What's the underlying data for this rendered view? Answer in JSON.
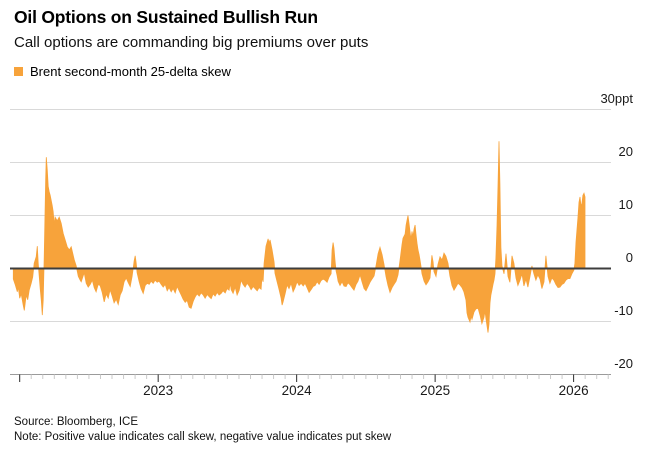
{
  "header": {
    "title": "Oil Options on Sustained Bullish Run",
    "subtitle": "Call options are commanding big premiums over puts"
  },
  "legend": {
    "label": "Brent second-month 25-delta skew",
    "swatch_color": "#F7A33B"
  },
  "footer": {
    "source": "Source: Bloomberg, ICE",
    "note": "Note: Positive value indicates call skew, negative value indicates put skew"
  },
  "chart_data": {
    "type": "area",
    "title": "Oil Options on Sustained Bullish Run",
    "subtitle": "Call options are commanding big premiums over puts",
    "series_name": "Brent second-month 25-delta skew",
    "unit": "ppt",
    "baseline": 0,
    "grid": "horizontal",
    "legend_position": "top-left",
    "x_domain": [
      2021.93,
      2026.27
    ],
    "y_ticks": [
      {
        "value": 30,
        "label": "30ppt"
      },
      {
        "value": 20,
        "label": "20"
      },
      {
        "value": 10,
        "label": "10"
      },
      {
        "value": 0,
        "label": "0"
      },
      {
        "value": -10,
        "label": "-10"
      },
      {
        "value": -20,
        "label": "-20"
      }
    ],
    "x_ticks": [
      {
        "value": 2023,
        "label": "2023"
      },
      {
        "value": 2024,
        "label": "2024"
      },
      {
        "value": 2025,
        "label": "2025"
      },
      {
        "value": 2026,
        "label": "2026"
      }
    ],
    "minor_tick_step_years": 0.0833333,
    "colors": {
      "area": "#F7A33B",
      "gridline": "#D9D9D9",
      "zero_line": "#3D3D3D",
      "axis_line": "#9B9B9B",
      "major_tick": "#2B2B2B",
      "minor_tick": "#C9C9C9"
    },
    "points": [
      [
        2021.954,
        -2.0
      ],
      [
        2021.968,
        -3.1
      ],
      [
        2021.983,
        -4.4
      ],
      [
        2021.99,
        -3.5
      ],
      [
        2022.0,
        -5.6
      ],
      [
        2022.011,
        -4.8
      ],
      [
        2022.025,
        -6.9
      ],
      [
        2022.033,
        -7.9
      ],
      [
        2022.047,
        -5.0
      ],
      [
        2022.058,
        -5.9
      ],
      [
        2022.069,
        -4.1
      ],
      [
        2022.083,
        -2.8
      ],
      [
        2022.094,
        -1.6
      ],
      [
        2022.105,
        1.0
      ],
      [
        2022.119,
        2.2
      ],
      [
        2022.127,
        4.2
      ],
      [
        2022.134,
        1.0
      ],
      [
        2022.148,
        -3.8
      ],
      [
        2022.156,
        -6.0
      ],
      [
        2022.163,
        -8.8
      ],
      [
        2022.17,
        -6.0
      ],
      [
        2022.177,
        2.0
      ],
      [
        2022.184,
        12.0
      ],
      [
        2022.188,
        17.0
      ],
      [
        2022.192,
        21.0
      ],
      [
        2022.199,
        18.5
      ],
      [
        2022.206,
        15.5
      ],
      [
        2022.213,
        14.5
      ],
      [
        2022.22,
        13.8
      ],
      [
        2022.235,
        11.9
      ],
      [
        2022.242,
        10.7
      ],
      [
        2022.249,
        8.2
      ],
      [
        2022.256,
        9.7
      ],
      [
        2022.271,
        9.0
      ],
      [
        2022.285,
        9.7
      ],
      [
        2022.3,
        8.5
      ],
      [
        2022.314,
        6.6
      ],
      [
        2022.329,
        5.3
      ],
      [
        2022.343,
        4.1
      ],
      [
        2022.358,
        3.5
      ],
      [
        2022.372,
        4.1
      ],
      [
        2022.394,
        1.6
      ],
      [
        2022.408,
        0.5
      ],
      [
        2022.423,
        -1.5
      ],
      [
        2022.437,
        -2.2
      ],
      [
        2022.444,
        -2.5
      ],
      [
        2022.466,
        -0.8
      ],
      [
        2022.48,
        -2.8
      ],
      [
        2022.495,
        -3.5
      ],
      [
        2022.509,
        -3.0
      ],
      [
        2022.524,
        -2.2
      ],
      [
        2022.538,
        -3.6
      ],
      [
        2022.552,
        -4.4
      ],
      [
        2022.567,
        -3.0
      ],
      [
        2022.581,
        -3.2
      ],
      [
        2022.596,
        -4.5
      ],
      [
        2022.61,
        -6.3
      ],
      [
        2022.625,
        -4.8
      ],
      [
        2022.639,
        -5.6
      ],
      [
        2022.653,
        -4.0
      ],
      [
        2022.668,
        -5.2
      ],
      [
        2022.682,
        -6.5
      ],
      [
        2022.697,
        -5.8
      ],
      [
        2022.711,
        -6.8
      ],
      [
        2022.726,
        -5.0
      ],
      [
        2022.74,
        -4.2
      ],
      [
        2022.754,
        -2.5
      ],
      [
        2022.769,
        -1.8
      ],
      [
        2022.783,
        -2.6
      ],
      [
        2022.798,
        -3.4
      ],
      [
        2022.812,
        -1.5
      ],
      [
        2022.827,
        1.5
      ],
      [
        2022.834,
        2.4
      ],
      [
        2022.841,
        1.0
      ],
      [
        2022.848,
        -0.8
      ],
      [
        2022.863,
        -2.5
      ],
      [
        2022.877,
        -3.8
      ],
      [
        2022.892,
        -4.7
      ],
      [
        2022.906,
        -3.2
      ],
      [
        2022.921,
        -2.8
      ],
      [
        2022.935,
        -3.0
      ],
      [
        2022.949,
        -2.4
      ],
      [
        2022.964,
        -2.8
      ],
      [
        2022.978,
        -2.2
      ],
      [
        2022.993,
        -2.6
      ],
      [
        2023.007,
        -2.4
      ],
      [
        2023.022,
        -3.0
      ],
      [
        2023.036,
        -3.5
      ],
      [
        2023.051,
        -3.0
      ],
      [
        2023.065,
        -4.2
      ],
      [
        2023.079,
        -3.6
      ],
      [
        2023.094,
        -4.4
      ],
      [
        2023.108,
        -3.8
      ],
      [
        2023.123,
        -4.6
      ],
      [
        2023.137,
        -3.4
      ],
      [
        2023.152,
        -4.2
      ],
      [
        2023.166,
        -5.0
      ],
      [
        2023.18,
        -5.8
      ],
      [
        2023.195,
        -6.4
      ],
      [
        2023.209,
        -6.0
      ],
      [
        2023.224,
        -7.3
      ],
      [
        2023.238,
        -7.5
      ],
      [
        2023.253,
        -6.2
      ],
      [
        2023.267,
        -5.4
      ],
      [
        2023.281,
        -4.8
      ],
      [
        2023.296,
        -5.2
      ],
      [
        2023.31,
        -4.6
      ],
      [
        2023.325,
        -5.0
      ],
      [
        2023.339,
        -5.6
      ],
      [
        2023.354,
        -4.9
      ],
      [
        2023.368,
        -5.3
      ],
      [
        2023.383,
        -5.7
      ],
      [
        2023.397,
        -4.8
      ],
      [
        2023.411,
        -5.2
      ],
      [
        2023.426,
        -4.5
      ],
      [
        2023.44,
        -5.0
      ],
      [
        2023.455,
        -4.7
      ],
      [
        2023.469,
        -4.2
      ],
      [
        2023.484,
        -4.6
      ],
      [
        2023.498,
        -3.8
      ],
      [
        2023.512,
        -4.1
      ],
      [
        2023.52,
        -2.8
      ],
      [
        2023.527,
        -4.0
      ],
      [
        2023.541,
        -4.7
      ],
      [
        2023.556,
        -3.5
      ],
      [
        2023.57,
        -5.0
      ],
      [
        2023.585,
        -4.1
      ],
      [
        2023.599,
        -2.2
      ],
      [
        2023.613,
        -3.0
      ],
      [
        2023.628,
        -3.5
      ],
      [
        2023.642,
        -2.8
      ],
      [
        2023.657,
        -3.3
      ],
      [
        2023.671,
        -4.0
      ],
      [
        2023.686,
        -3.4
      ],
      [
        2023.7,
        -3.8
      ],
      [
        2023.715,
        -4.2
      ],
      [
        2023.729,
        -3.6
      ],
      [
        2023.743,
        -3.9
      ],
      [
        2023.75,
        -1.6
      ],
      [
        2023.758,
        -2.5
      ],
      [
        2023.765,
        1.0
      ],
      [
        2023.779,
        4.2
      ],
      [
        2023.794,
        5.6
      ],
      [
        2023.801,
        4.8
      ],
      [
        2023.808,
        5.4
      ],
      [
        2023.823,
        3.5
      ],
      [
        2023.837,
        1.2
      ],
      [
        2023.844,
        -0.9
      ],
      [
        2023.859,
        -2.5
      ],
      [
        2023.873,
        -4.0
      ],
      [
        2023.888,
        -5.6
      ],
      [
        2023.895,
        -6.9
      ],
      [
        2023.902,
        -6.3
      ],
      [
        2023.917,
        -4.7
      ],
      [
        2023.931,
        -3.1
      ],
      [
        2023.945,
        -3.8
      ],
      [
        2023.96,
        -2.8
      ],
      [
        2023.974,
        -4.4
      ],
      [
        2023.989,
        -3.6
      ],
      [
        2024.003,
        -2.5
      ],
      [
        2024.018,
        -3.2
      ],
      [
        2024.032,
        -2.8
      ],
      [
        2024.047,
        -3.3
      ],
      [
        2024.061,
        -2.8
      ],
      [
        2024.075,
        -3.6
      ],
      [
        2024.09,
        -4.5
      ],
      [
        2024.104,
        -4.0
      ],
      [
        2024.119,
        -3.4
      ],
      [
        2024.133,
        -3.2
      ],
      [
        2024.148,
        -2.5
      ],
      [
        2024.162,
        -3.0
      ],
      [
        2024.176,
        -2.3
      ],
      [
        2024.191,
        -2.0
      ],
      [
        2024.205,
        -2.2
      ],
      [
        2024.22,
        -2.6
      ],
      [
        2024.234,
        -1.6
      ],
      [
        2024.249,
        -1.0
      ],
      [
        2024.256,
        3.5
      ],
      [
        2024.263,
        4.9
      ],
      [
        2024.27,
        3.8
      ],
      [
        2024.277,
        1.5
      ],
      [
        2024.285,
        -0.5
      ],
      [
        2024.292,
        -1.3
      ],
      [
        2024.299,
        -2.4
      ],
      [
        2024.313,
        -3.2
      ],
      [
        2024.328,
        -2.5
      ],
      [
        2024.342,
        -3.3
      ],
      [
        2024.357,
        -3.4
      ],
      [
        2024.371,
        -2.7
      ],
      [
        2024.386,
        -3.1
      ],
      [
        2024.4,
        -3.6
      ],
      [
        2024.414,
        -4.1
      ],
      [
        2024.429,
        -3.0
      ],
      [
        2024.443,
        -2.4
      ],
      [
        2024.458,
        -1.2
      ],
      [
        2024.472,
        -2.5
      ],
      [
        2024.487,
        -3.8
      ],
      [
        2024.501,
        -4.2
      ],
      [
        2024.516,
        -3.4
      ],
      [
        2024.53,
        -2.6
      ],
      [
        2024.544,
        -2.0
      ],
      [
        2024.559,
        -1.4
      ],
      [
        2024.573,
        0.5
      ],
      [
        2024.588,
        2.8
      ],
      [
        2024.602,
        4.0
      ],
      [
        2024.617,
        2.6
      ],
      [
        2024.631,
        0.8
      ],
      [
        2024.645,
        -1.5
      ],
      [
        2024.66,
        -3.2
      ],
      [
        2024.674,
        -4.5
      ],
      [
        2024.689,
        -3.6
      ],
      [
        2024.703,
        -3.0
      ],
      [
        2024.718,
        -2.4
      ],
      [
        2024.732,
        -1.2
      ],
      [
        2024.746,
        1.5
      ],
      [
        2024.761,
        4.5
      ],
      [
        2024.768,
        5.7
      ],
      [
        2024.783,
        6.5
      ],
      [
        2024.79,
        8.2
      ],
      [
        2024.804,
        10.0
      ],
      [
        2024.812,
        8.4
      ],
      [
        2024.819,
        6.8
      ],
      [
        2024.826,
        5.5
      ],
      [
        2024.833,
        7.0
      ],
      [
        2024.84,
        6.0
      ],
      [
        2024.848,
        7.5
      ],
      [
        2024.855,
        8.2
      ],
      [
        2024.862,
        6.4
      ],
      [
        2024.869,
        4.8
      ],
      [
        2024.876,
        3.5
      ],
      [
        2024.884,
        2.6
      ],
      [
        2024.891,
        1.6
      ],
      [
        2024.898,
        0.4
      ],
      [
        2024.905,
        -1.0
      ],
      [
        2024.92,
        -2.4
      ],
      [
        2024.934,
        -3.1
      ],
      [
        2024.949,
        -2.5
      ],
      [
        2024.963,
        -1.8
      ],
      [
        2024.977,
        2.5
      ],
      [
        2024.985,
        1.2
      ],
      [
        2024.992,
        -0.6
      ],
      [
        2025.006,
        -1.5
      ],
      [
        2025.021,
        0.8
      ],
      [
        2025.035,
        2.2
      ],
      [
        2025.05,
        1.6
      ],
      [
        2025.064,
        2.9
      ],
      [
        2025.078,
        2.3
      ],
      [
        2025.093,
        1.0
      ],
      [
        2025.107,
        -1.4
      ],
      [
        2025.122,
        -3.2
      ],
      [
        2025.136,
        -4.1
      ],
      [
        2025.15,
        -3.5
      ],
      [
        2025.165,
        -2.8
      ],
      [
        2025.179,
        -3.1
      ],
      [
        2025.194,
        -3.6
      ],
      [
        2025.208,
        -4.4
      ],
      [
        2025.223,
        -6.0
      ],
      [
        2025.23,
        -8.4
      ],
      [
        2025.237,
        -9.2
      ],
      [
        2025.252,
        -10.1
      ],
      [
        2025.259,
        -9.0
      ],
      [
        2025.266,
        -9.6
      ],
      [
        2025.273,
        -9.0
      ],
      [
        2025.281,
        -8.2
      ],
      [
        2025.295,
        -7.6
      ],
      [
        2025.31,
        -7.5
      ],
      [
        2025.324,
        -8.8
      ],
      [
        2025.338,
        -10.4
      ],
      [
        2025.353,
        -9.2
      ],
      [
        2025.36,
        -8.0
      ],
      [
        2025.367,
        -9.5
      ],
      [
        2025.382,
        -12.1
      ],
      [
        2025.389,
        -10.5
      ],
      [
        2025.396,
        -6.5
      ],
      [
        2025.403,
        -5.0
      ],
      [
        2025.411,
        -4.0
      ],
      [
        2025.418,
        -3.0
      ],
      [
        2025.425,
        -2.2
      ],
      [
        2025.432,
        -1.0
      ],
      [
        2025.439,
        2.0
      ],
      [
        2025.447,
        8.0
      ],
      [
        2025.454,
        15.5
      ],
      [
        2025.461,
        24.0
      ],
      [
        2025.468,
        16.0
      ],
      [
        2025.475,
        4.0
      ],
      [
        2025.483,
        0.5
      ],
      [
        2025.497,
        -1.0
      ],
      [
        2025.512,
        2.8
      ],
      [
        2025.526,
        -1.5
      ],
      [
        2025.54,
        -2.6
      ],
      [
        2025.555,
        2.4
      ],
      [
        2025.569,
        1.0
      ],
      [
        2025.584,
        -1.8
      ],
      [
        2025.598,
        -3.2
      ],
      [
        2025.613,
        -2.2
      ],
      [
        2025.627,
        -1.0
      ],
      [
        2025.641,
        -3.3
      ],
      [
        2025.656,
        -2.0
      ],
      [
        2025.67,
        -3.5
      ],
      [
        2025.685,
        -1.5
      ],
      [
        2025.699,
        0.5
      ],
      [
        2025.713,
        -1.0
      ],
      [
        2025.728,
        -2.2
      ],
      [
        2025.742,
        -1.2
      ],
      [
        2025.757,
        -2.0
      ],
      [
        2025.771,
        -3.8
      ],
      [
        2025.786,
        -2.5
      ],
      [
        2025.8,
        2.4
      ],
      [
        2025.815,
        -1.5
      ],
      [
        2025.829,
        -2.8
      ],
      [
        2025.843,
        -1.8
      ],
      [
        2025.858,
        -2.2
      ],
      [
        2025.872,
        -3.0
      ],
      [
        2025.887,
        -3.6
      ],
      [
        2025.901,
        -3.5
      ],
      [
        2025.916,
        -3.0
      ],
      [
        2025.93,
        -2.8
      ],
      [
        2025.944,
        -2.2
      ],
      [
        2025.959,
        -1.9
      ],
      [
        2025.973,
        -1.9
      ],
      [
        2025.988,
        -1.0
      ],
      [
        2026.002,
        -0.3
      ],
      [
        2026.009,
        1.0
      ],
      [
        2026.017,
        5.0
      ],
      [
        2026.031,
        9.5
      ],
      [
        2026.039,
        12.5
      ],
      [
        2026.046,
        13.5
      ],
      [
        2026.053,
        11.8
      ],
      [
        2026.06,
        12.2
      ],
      [
        2026.067,
        13.8
      ],
      [
        2026.075,
        14.2
      ],
      [
        2026.082,
        13.5
      ]
    ]
  }
}
